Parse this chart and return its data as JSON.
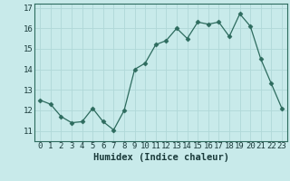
{
  "x": [
    0,
    1,
    2,
    3,
    4,
    5,
    6,
    7,
    8,
    9,
    10,
    11,
    12,
    13,
    14,
    15,
    16,
    17,
    18,
    19,
    20,
    21,
    22,
    23
  ],
  "y": [
    12.5,
    12.3,
    11.7,
    11.4,
    11.45,
    12.1,
    11.45,
    11.05,
    12.0,
    14.0,
    14.3,
    15.2,
    15.4,
    16.0,
    15.5,
    16.3,
    16.2,
    16.3,
    15.6,
    16.7,
    16.1,
    14.5,
    13.3,
    12.1
  ],
  "line_color": "#2d6b5e",
  "marker": "D",
  "marker_size": 2.5,
  "bg_color": "#c8eaea",
  "grid_color": "#b0d8d8",
  "xlabel": "Humidex (Indice chaleur)",
  "ylim": [
    10.5,
    17.2
  ],
  "xlim": [
    -0.5,
    23.5
  ],
  "yticks": [
    11,
    12,
    13,
    14,
    15,
    16,
    17
  ],
  "xticks": [
    0,
    1,
    2,
    3,
    4,
    5,
    6,
    7,
    8,
    9,
    10,
    11,
    12,
    13,
    14,
    15,
    16,
    17,
    18,
    19,
    20,
    21,
    22,
    23
  ],
  "xlabel_fontsize": 7.5,
  "tick_fontsize": 6.5
}
